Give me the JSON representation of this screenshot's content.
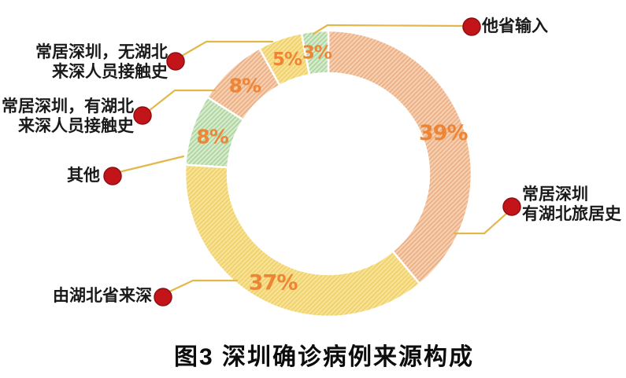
{
  "figure_title": "图3 深圳确诊病例来源构成",
  "colors": {
    "percent_label": "#ee8435",
    "dot_red": "#c21419",
    "dot_red_dark": "#8e0f13",
    "leader_line": "#e3b84b",
    "label_text": "#1a1a1a",
    "slice_gap": "#ffffff",
    "salmon_base": "#f6cfae",
    "salmon_hatch": "#e9a87e",
    "yellow_base": "#f7e295",
    "yellow_hatch": "#eecd62",
    "green_base": "#d7ebcb",
    "green_hatch": "#a2d099"
  },
  "chart_data": {
    "type": "pie",
    "subtype": "donut",
    "title": "图3 深圳确诊病例来源构成",
    "unit": "%",
    "start_angle_deg_from_top": 0,
    "direction": "clockwise",
    "slices": [
      {
        "label": "常居深圳 有湖北旅居史",
        "value": 39,
        "pct_label": "39%",
        "color_key": "salmon"
      },
      {
        "label": "由湖北省来深",
        "value": 37,
        "pct_label": "37%",
        "color_key": "yellow"
      },
      {
        "label": "其他",
        "value": 8,
        "pct_label": "8%",
        "color_key": "green"
      },
      {
        "label": "常居深圳，有湖北来深人员接触史",
        "value": 8,
        "pct_label": "8%",
        "color_key": "salmon"
      },
      {
        "label": "常居深圳，无湖北来深人员接触史",
        "value": 5,
        "pct_label": "5%",
        "color_key": "yellow"
      },
      {
        "label": "他省输入",
        "value": 3,
        "pct_label": "3%",
        "color_key": "green"
      }
    ]
  },
  "callouts": {
    "other_province": {
      "line1": "他省输入"
    },
    "no_hubei_contact": {
      "line1": "常居深圳，无湖北",
      "line2": "来深人员接触史"
    },
    "hubei_contact": {
      "line1": "常居深圳，有湖北",
      "line2": "来深人员接触史"
    },
    "other": {
      "line1": "其他"
    },
    "from_hubei": {
      "line1": "由湖北省来深"
    },
    "hubei_travel": {
      "line1": "常居深圳",
      "line2": "有湖北旅居史"
    }
  }
}
